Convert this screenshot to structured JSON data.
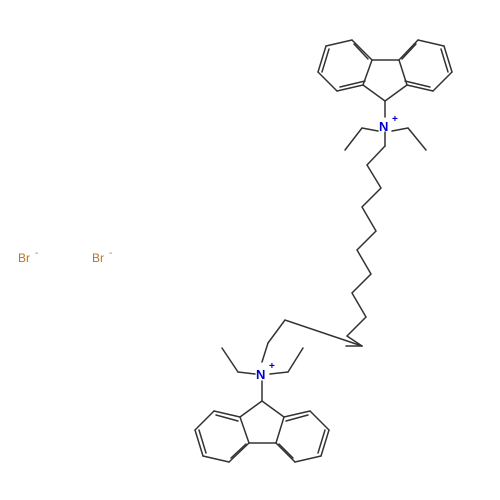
{
  "atoms": {
    "nitrogen_top": {
      "symbol": "N",
      "charge": "+"
    },
    "nitrogen_bottom": {
      "symbol": "N",
      "charge": "+"
    },
    "bromide_1": {
      "symbol": "Br",
      "charge": "-"
    },
    "bromide_2": {
      "symbol": "Br",
      "charge": "-"
    }
  },
  "colors": {
    "bond": "#333333",
    "nitrogen": "#0000cc",
    "bromine": "#b8742a",
    "background": "#ffffff"
  }
}
